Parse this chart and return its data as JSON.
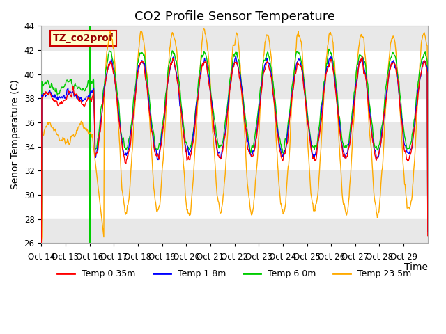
{
  "title": "CO2 Profile Sensor Temperature",
  "ylabel": "Senor Temperature (C)",
  "xlabel": "Time",
  "ylim": [
    26,
    44
  ],
  "yticks": [
    26,
    28,
    30,
    32,
    34,
    36,
    38,
    40,
    42,
    44
  ],
  "xtick_labels": [
    "Oct 14",
    "Oct 15",
    "Oct 16",
    "Oct 17",
    "Oct 18",
    "Oct 19",
    "Oct 20",
    "Oct 21",
    "Oct 22",
    "Oct 23",
    "Oct 24",
    "Oct 25",
    "Oct 26",
    "Oct 27",
    "Oct 28",
    "Oct 29"
  ],
  "legend_labels": [
    "Temp 0.35m",
    "Temp 1.8m",
    "Temp 6.0m",
    "Temp 23.5m"
  ],
  "line_colors": [
    "#ff0000",
    "#0000ff",
    "#00cc00",
    "#ffaa00"
  ],
  "annotation_text": "TZ_co2prof",
  "annotation_color": "#990000",
  "annotation_bg": "#ffffcc",
  "annotation_border": "#cc0000",
  "vline_color": "#00cc00",
  "vline_x": 2,
  "background_color": "#ffffff",
  "band_color": "#e8e8e8",
  "title_fontsize": 13,
  "axis_fontsize": 10,
  "tick_fontsize": 8.5
}
